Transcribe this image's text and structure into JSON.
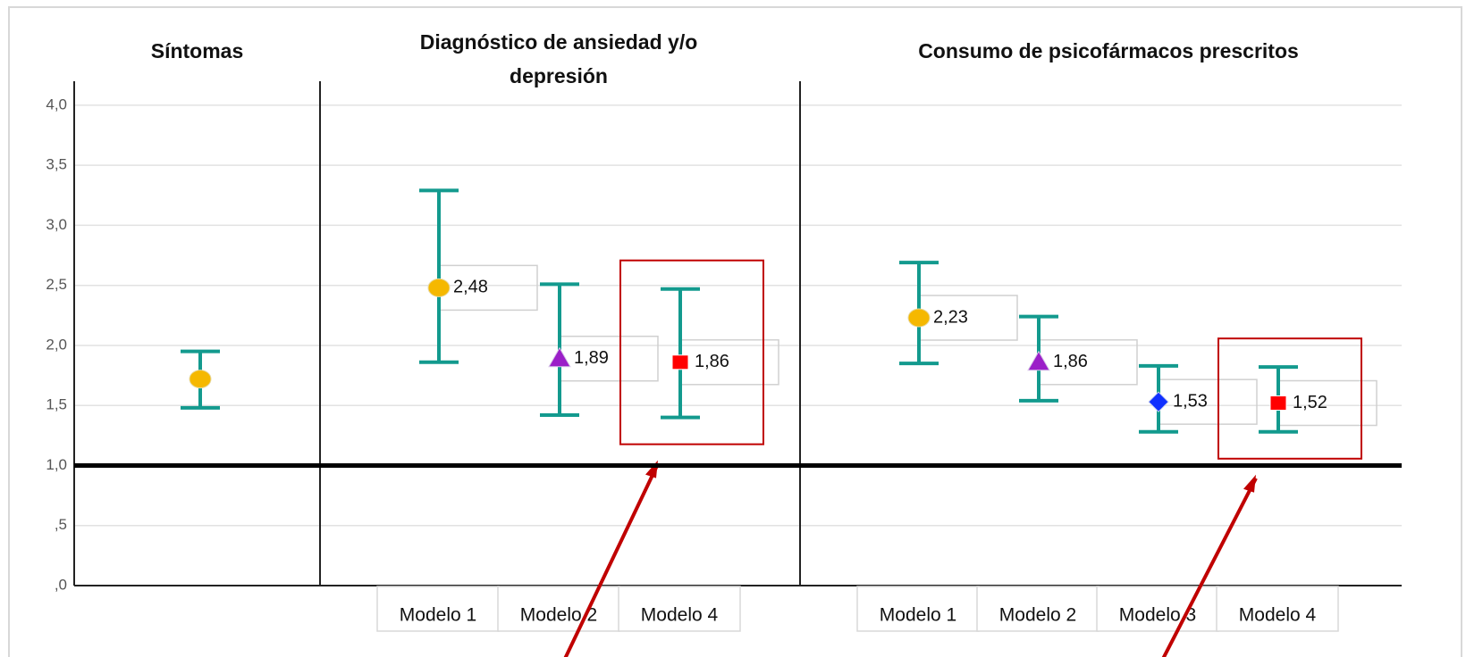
{
  "chart_data": [
    {
      "type": "errorbar",
      "title": "Síntomas",
      "categories": [
        null
      ],
      "values": [
        1.72
      ],
      "lower": [
        1.48
      ],
      "upper": [
        1.95
      ],
      "markers": [
        "circle"
      ],
      "marker_colors": [
        "#f5b800"
      ],
      "color": "#139a8e",
      "ylim": [
        0,
        4.2
      ],
      "yticks": [
        {
          "value": 0,
          "label": ",0"
        },
        {
          "value": 0.5,
          "label": ",5"
        },
        {
          "value": 1,
          "label": "1,0"
        },
        {
          "value": 1.5,
          "label": "1,5"
        },
        {
          "value": 2,
          "label": "2,0"
        },
        {
          "value": 2.5,
          "label": "2,5"
        },
        {
          "value": 3,
          "label": "3,0"
        },
        {
          "value": 3.5,
          "label": "3,5"
        },
        {
          "value": 4,
          "label": "4,0"
        }
      ],
      "grid": true,
      "reference_line": 1
    },
    {
      "type": "errorbar",
      "title": "Diagnóstico de ansiedad y/o depresión",
      "categories": [
        "Modelo 1",
        "Modelo 2",
        "Modelo 4"
      ],
      "values": [
        2.48,
        1.89,
        1.86
      ],
      "value_labels": [
        "2,48",
        "1,89",
        "1,86"
      ],
      "lower": [
        1.86,
        1.42,
        1.4
      ],
      "upper": [
        3.29,
        2.51,
        2.47
      ],
      "markers": [
        "circle",
        "triangle",
        "square"
      ],
      "marker_colors": [
        "#f5b800",
        "#9b1fc8",
        "#ff0000"
      ],
      "color": "#139a8e"
    },
    {
      "type": "errorbar",
      "title": "Consumo de psicofármacos prescritos",
      "categories": [
        "Modelo 1",
        "Modelo 2",
        "Modelo 3",
        "Modelo 4"
      ],
      "values": [
        2.23,
        1.86,
        1.53,
        1.52
      ],
      "value_labels": [
        "2,23",
        "1,86",
        "1,53",
        "1,52"
      ],
      "lower": [
        1.85,
        1.54,
        1.28,
        1.28
      ],
      "upper": [
        2.69,
        2.24,
        1.83,
        1.82
      ],
      "markers": [
        "circle",
        "triangle",
        "diamond",
        "square"
      ],
      "marker_colors": [
        "#f5b800",
        "#9b1fc8",
        "#1030ff",
        "#ff0000"
      ],
      "color": "#139a8e"
    }
  ]
}
